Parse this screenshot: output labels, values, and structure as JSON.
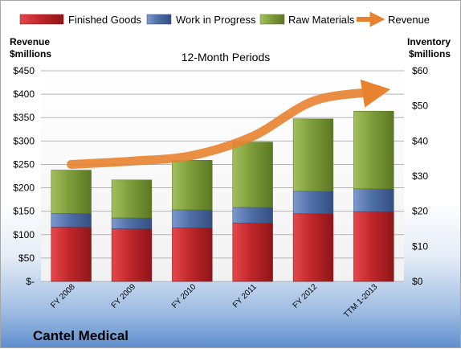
{
  "chart_data": {
    "type": "bar",
    "stacked": true,
    "title": "12-Month Periods",
    "footer": "Cantel Medical",
    "categories": [
      "FY 2008",
      "FY 2009",
      "FY 2010",
      "FY 2011",
      "FY 2012",
      "TTM 1-2013"
    ],
    "series": [
      {
        "name": "Finished Goods",
        "axis": "right",
        "color": "#c0272b",
        "values": [
          15.5,
          15.0,
          15.3,
          16.6,
          19.3,
          19.9
        ]
      },
      {
        "name": "Work in Progress",
        "axis": "right",
        "color": "#4f6fa7",
        "values": [
          3.9,
          3.1,
          5.1,
          4.5,
          6.4,
          6.5
        ]
      },
      {
        "name": "Raw Materials",
        "axis": "right",
        "color": "#7e9d3a",
        "values": [
          12.3,
          10.8,
          14.1,
          18.6,
          20.6,
          22.1
        ]
      },
      {
        "name": "Revenue",
        "axis": "left",
        "type": "line",
        "color": "#e8822f",
        "values": [
          250,
          257,
          269,
          310,
          385,
          405
        ]
      }
    ],
    "y_left": {
      "label_line1": "Revenue",
      "label_line2": "$millions",
      "ylim": [
        0,
        450
      ],
      "step": 50,
      "tick_labels": [
        "$-",
        "$50",
        "$100",
        "$150",
        "$200",
        "$250",
        "$300",
        "$350",
        "$400",
        "$450"
      ]
    },
    "y_right": {
      "label_line1": "Inventory",
      "label_line2": "$millions",
      "ylim": [
        0,
        60
      ],
      "step": 10,
      "tick_labels": [
        "$0",
        "$10",
        "$20",
        "$30",
        "$40",
        "$50",
        "$60"
      ]
    },
    "legend_position": "top",
    "grid": true
  }
}
